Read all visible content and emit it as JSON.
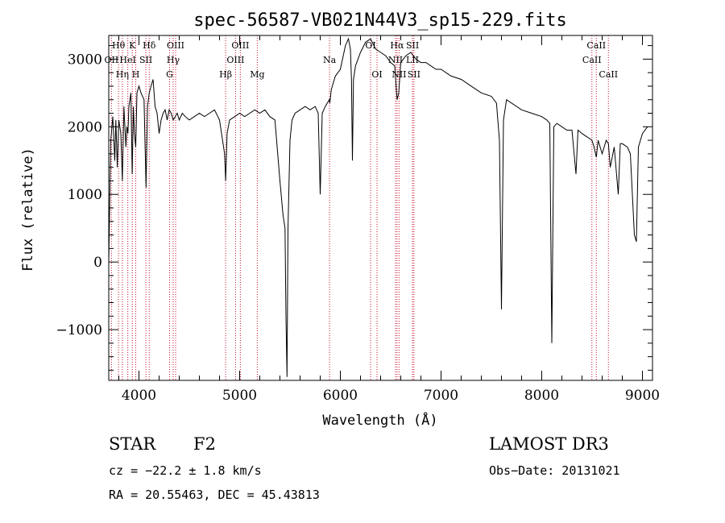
{
  "chart_data": {
    "type": "line",
    "title": "spec-56587-VB021N44V3_sp15-229.fits",
    "xlabel": "Wavelength (Å)",
    "ylabel": "Flux (relative)",
    "xlim": [
      3700,
      9100
    ],
    "ylim": [
      -1750,
      3350
    ],
    "xticks": [
      {
        "value": 4000,
        "label": "4000"
      },
      {
        "value": 5000,
        "label": "5000"
      },
      {
        "value": 6000,
        "label": "6000"
      },
      {
        "value": 7000,
        "label": "7000"
      },
      {
        "value": 8000,
        "label": "8000"
      },
      {
        "value": 9000,
        "label": "9000"
      }
    ],
    "yticks": [
      {
        "value": -1000,
        "label": "−1000"
      },
      {
        "value": 0,
        "label": "0"
      },
      {
        "value": 1000,
        "label": "1000"
      },
      {
        "value": 2000,
        "label": "2000"
      },
      {
        "value": 3000,
        "label": "3000"
      }
    ],
    "series": [
      {
        "name": "spectrum",
        "x": [
          3700,
          3720,
          3740,
          3760,
          3770,
          3785,
          3800,
          3820,
          3835,
          3850,
          3870,
          3880,
          3890,
          3900,
          3920,
          3933,
          3945,
          3955,
          3968,
          3980,
          4000,
          4020,
          4050,
          4070,
          4085,
          4102,
          4120,
          4140,
          4160,
          4180,
          4200,
          4220,
          4240,
          4260,
          4280,
          4300,
          4320,
          4340,
          4360,
          4380,
          4400,
          4430,
          4460,
          4500,
          4550,
          4600,
          4650,
          4700,
          4750,
          4800,
          4830,
          4850,
          4861,
          4875,
          4900,
          4950,
          5000,
          5050,
          5100,
          5150,
          5200,
          5250,
          5300,
          5350,
          5400,
          5430,
          5450,
          5460,
          5470,
          5480,
          5500,
          5520,
          5550,
          5600,
          5650,
          5700,
          5750,
          5780,
          5800,
          5820,
          5850,
          5890,
          5895,
          5910,
          5950,
          6000,
          6050,
          6080,
          6100,
          6110,
          6120,
          6130,
          6150,
          6200,
          6250,
          6300,
          6350,
          6400,
          6450,
          6500,
          6540,
          6563,
          6580,
          6600,
          6650,
          6700,
          6750,
          6800,
          6850,
          6900,
          6950,
          7000,
          7100,
          7200,
          7300,
          7400,
          7500,
          7550,
          7580,
          7600,
          7620,
          7650,
          7700,
          7800,
          7900,
          8000,
          8050,
          8080,
          8100,
          8120,
          8150,
          8200,
          8250,
          8300,
          8340,
          8360,
          8400,
          8450,
          8498,
          8520,
          8542,
          8560,
          8600,
          8640,
          8662,
          8680,
          8720,
          8760,
          8780,
          8800,
          8850,
          8880,
          8900,
          8920,
          8940,
          8960,
          8980,
          9000,
          9050
        ],
        "y": [
          0,
          1800,
          2150,
          1500,
          2100,
          1400,
          2100,
          1900,
          1200,
          2300,
          1700,
          2000,
          1900,
          2300,
          2500,
          1300,
          2300,
          1900,
          1700,
          2500,
          2600,
          2500,
          2400,
          1100,
          2300,
          2500,
          2600,
          2700,
          2300,
          2200,
          1900,
          2100,
          2200,
          2250,
          2100,
          2250,
          2200,
          2100,
          2150,
          2200,
          2100,
          2200,
          2150,
          2100,
          2150,
          2200,
          2150,
          2200,
          2250,
          2100,
          1800,
          1600,
          1200,
          1900,
          2100,
          2150,
          2200,
          2150,
          2200,
          2250,
          2200,
          2250,
          2150,
          2100,
          1200,
          700,
          500,
          -800,
          -1700,
          500,
          1800,
          2100,
          2200,
          2250,
          2300,
          2250,
          2300,
          2200,
          1000,
          2200,
          2300,
          2400,
          2350,
          2550,
          2750,
          2850,
          3200,
          3300,
          3150,
          2700,
          1500,
          2700,
          2900,
          3100,
          3250,
          3300,
          3150,
          3100,
          3050,
          2950,
          2900,
          2400,
          2500,
          2950,
          3050,
          3100,
          3000,
          2950,
          2950,
          2900,
          2850,
          2850,
          2750,
          2700,
          2600,
          2500,
          2450,
          2350,
          1800,
          -700,
          2100,
          2400,
          2350,
          2250,
          2200,
          2150,
          2100,
          2050,
          -1200,
          2000,
          2050,
          2000,
          1950,
          1950,
          1300,
          1950,
          1900,
          1850,
          1800,
          1700,
          1550,
          1800,
          1600,
          1800,
          1750,
          1400,
          1700,
          1000,
          1750,
          1750,
          1700,
          1600,
          1000,
          400,
          300,
          1700,
          1800,
          1900,
          2000
        ]
      }
    ],
    "spectral_lines": [
      {
        "label": "Hθ",
        "wave": 3797,
        "row": 0
      },
      {
        "label": "K",
        "wave": 3934,
        "row": 0
      },
      {
        "label": "Hδ",
        "wave": 4102,
        "row": 0
      },
      {
        "label": "OIII",
        "wave": 4364,
        "row": 0
      },
      {
        "label": "OIII",
        "wave": 5007,
        "row": 0
      },
      {
        "label": "OI",
        "wave": 6300,
        "row": 0
      },
      {
        "label": "Hα",
        "wave": 6563,
        "row": 0
      },
      {
        "label": "SII",
        "wave": 6717,
        "row": 0
      },
      {
        "label": "CaII",
        "wave": 8542,
        "row": 0
      },
      {
        "label": "OII",
        "wave": 3727,
        "row": 1
      },
      {
        "label": "HeI",
        "wave": 3889,
        "row": 1
      },
      {
        "label": "SII",
        "wave": 4069,
        "row": 1
      },
      {
        "label": "Hγ",
        "wave": 4340,
        "row": 1
      },
      {
        "label": "OIII",
        "wave": 4959,
        "row": 1
      },
      {
        "label": "Na",
        "wave": 5893,
        "row": 1
      },
      {
        "label": "NII",
        "wave": 6548,
        "row": 1
      },
      {
        "label": "LII",
        "wave": 6716,
        "row": 1
      },
      {
        "label": "CaII",
        "wave": 8498,
        "row": 1
      },
      {
        "label": "Hη",
        "wave": 3835,
        "row": 2
      },
      {
        "label": "H",
        "wave": 3968,
        "row": 2
      },
      {
        "label": "G",
        "wave": 4304,
        "row": 2
      },
      {
        "label": "Hβ",
        "wave": 4861,
        "row": 2
      },
      {
        "label": "Mg",
        "wave": 5175,
        "row": 2
      },
      {
        "label": "OI",
        "wave": 6364,
        "row": 2
      },
      {
        "label": "NII",
        "wave": 6583,
        "row": 2
      },
      {
        "label": "SII",
        "wave": 6731,
        "row": 2
      },
      {
        "label": "CaII",
        "wave": 8662,
        "row": 2
      }
    ]
  },
  "info": {
    "object_class": "STAR",
    "subclass": "F2",
    "survey": "LAMOST DR3",
    "redshift_text": "cz = −22.2 ± 1.8 km/s",
    "obs_date": "Obs−Date: 20131021",
    "coords": "RA =  20.55463, DEC =  45.43813"
  }
}
